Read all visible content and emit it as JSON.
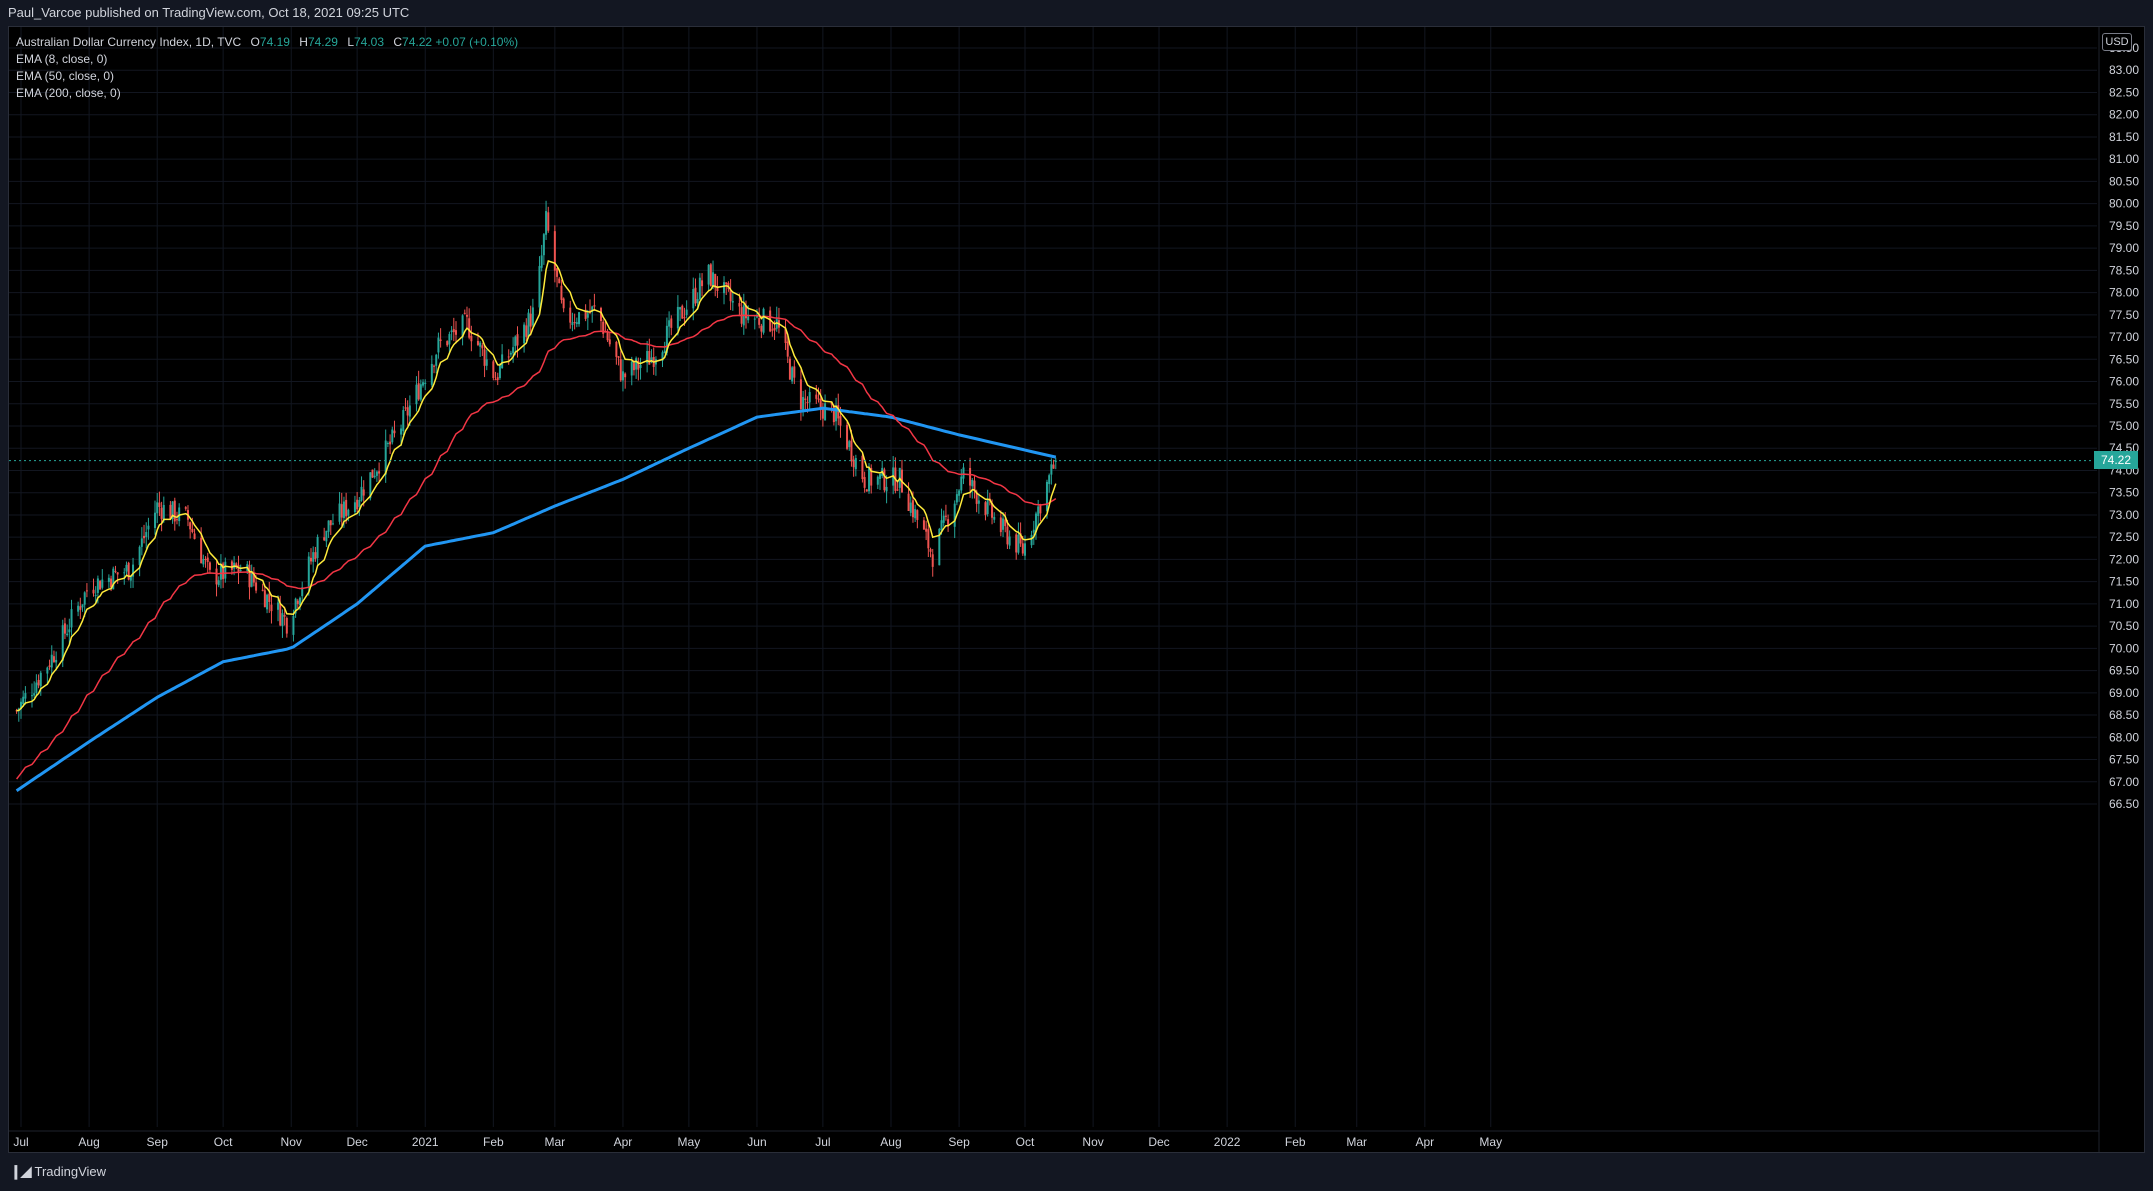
{
  "header": {
    "published_text": "Paul_Varcoe published on TradingView.com, Oct 18, 2021 09:25 UTC"
  },
  "legend": {
    "symbol": "Australian Dollar Currency Index, 1D, TVC",
    "open_label": "O",
    "open": "74.19",
    "high_label": "H",
    "high": "74.29",
    "low_label": "L",
    "low": "74.03",
    "close_label": "C",
    "close": "74.22",
    "change": "+0.07 (+0.10%)",
    "indicators": [
      "EMA (8, close, 0)",
      "EMA (50, close, 0)",
      "EMA (200, close, 0)"
    ]
  },
  "footer": {
    "brand": "TradingView"
  },
  "colors": {
    "up": "#26a69a",
    "down": "#ef5350",
    "ema8": "#ffeb3b",
    "ema50": "#f23645",
    "ema200": "#2196f3",
    "background": "#000000"
  },
  "chart_data": {
    "type": "candlestick",
    "currency": "USD",
    "last_price": "74.22",
    "y_range": [
      66.0,
      84.0
    ],
    "y_ticks": [
      "83.50",
      "83.00",
      "82.50",
      "82.00",
      "81.50",
      "81.00",
      "80.50",
      "80.00",
      "79.50",
      "79.00",
      "78.50",
      "78.00",
      "77.50",
      "77.00",
      "76.50",
      "76.00",
      "75.50",
      "75.00",
      "74.50",
      "74.00",
      "73.50",
      "73.00",
      "72.50",
      "72.00",
      "71.50",
      "71.00",
      "70.50",
      "70.00",
      "69.50",
      "69.00",
      "68.50",
      "68.00",
      "67.50",
      "67.00",
      "66.50"
    ],
    "x_ticks": [
      "Jul",
      "Aug",
      "Sep",
      "Oct",
      "Nov",
      "Dec",
      "2021",
      "Feb",
      "Mar",
      "Apr",
      "May",
      "Jun",
      "Jul",
      "Aug",
      "Sep",
      "Oct",
      "Nov",
      "Dec",
      "2022",
      "Feb",
      "Mar",
      "Apr",
      "May"
    ],
    "price_anchors": [
      [
        "2020-06-29",
        68.6
      ],
      [
        "2020-07-15",
        69.8
      ],
      [
        "2020-08-01",
        71.4
      ],
      [
        "2020-08-20",
        71.8
      ],
      [
        "2020-09-01",
        73.2
      ],
      [
        "2020-09-15",
        72.9
      ],
      [
        "2020-09-25",
        71.6
      ],
      [
        "2020-10-10",
        71.8
      ],
      [
        "2020-10-20",
        71.2
      ],
      [
        "2020-10-30",
        70.6
      ],
      [
        "2020-11-15",
        72.6
      ],
      [
        "2020-12-01",
        73.4
      ],
      [
        "2020-12-20",
        74.9
      ],
      [
        "2021-01-07",
        76.8
      ],
      [
        "2021-01-20",
        77.3
      ],
      [
        "2021-02-02",
        76.1
      ],
      [
        "2021-02-20",
        77.6
      ],
      [
        "2021-02-25",
        79.6
      ],
      [
        "2021-03-05",
        77.4
      ],
      [
        "2021-03-20",
        77.6
      ],
      [
        "2021-04-01",
        76.1
      ],
      [
        "2021-04-15",
        76.6
      ],
      [
        "2021-04-30",
        77.7
      ],
      [
        "2021-05-10",
        78.4
      ],
      [
        "2021-05-25",
        77.5
      ],
      [
        "2021-06-10",
        77.3
      ],
      [
        "2021-06-20",
        75.6
      ],
      [
        "2021-07-06",
        75.3
      ],
      [
        "2021-07-20",
        73.8
      ],
      [
        "2021-08-05",
        73.8
      ],
      [
        "2021-08-20",
        72.1
      ],
      [
        "2021-09-03",
        73.9
      ],
      [
        "2021-09-20",
        72.7
      ],
      [
        "2021-09-30",
        72.2
      ],
      [
        "2021-10-15",
        74.22
      ]
    ],
    "ema200_anchors": [
      [
        "2020-06-29",
        66.8
      ],
      [
        "2020-08-01",
        67.9
      ],
      [
        "2020-09-01",
        68.9
      ],
      [
        "2020-10-01",
        69.7
      ],
      [
        "2020-11-01",
        70.0
      ],
      [
        "2020-12-01",
        71.0
      ],
      [
        "2021-01-01",
        72.3
      ],
      [
        "2021-02-01",
        72.6
      ],
      [
        "2021-03-01",
        73.2
      ],
      [
        "2021-04-01",
        73.8
      ],
      [
        "2021-05-01",
        74.5
      ],
      [
        "2021-06-01",
        75.2
      ],
      [
        "2021-07-01",
        75.4
      ],
      [
        "2021-08-01",
        75.2
      ],
      [
        "2021-09-01",
        74.8
      ],
      [
        "2021-10-15",
        74.3
      ]
    ]
  }
}
